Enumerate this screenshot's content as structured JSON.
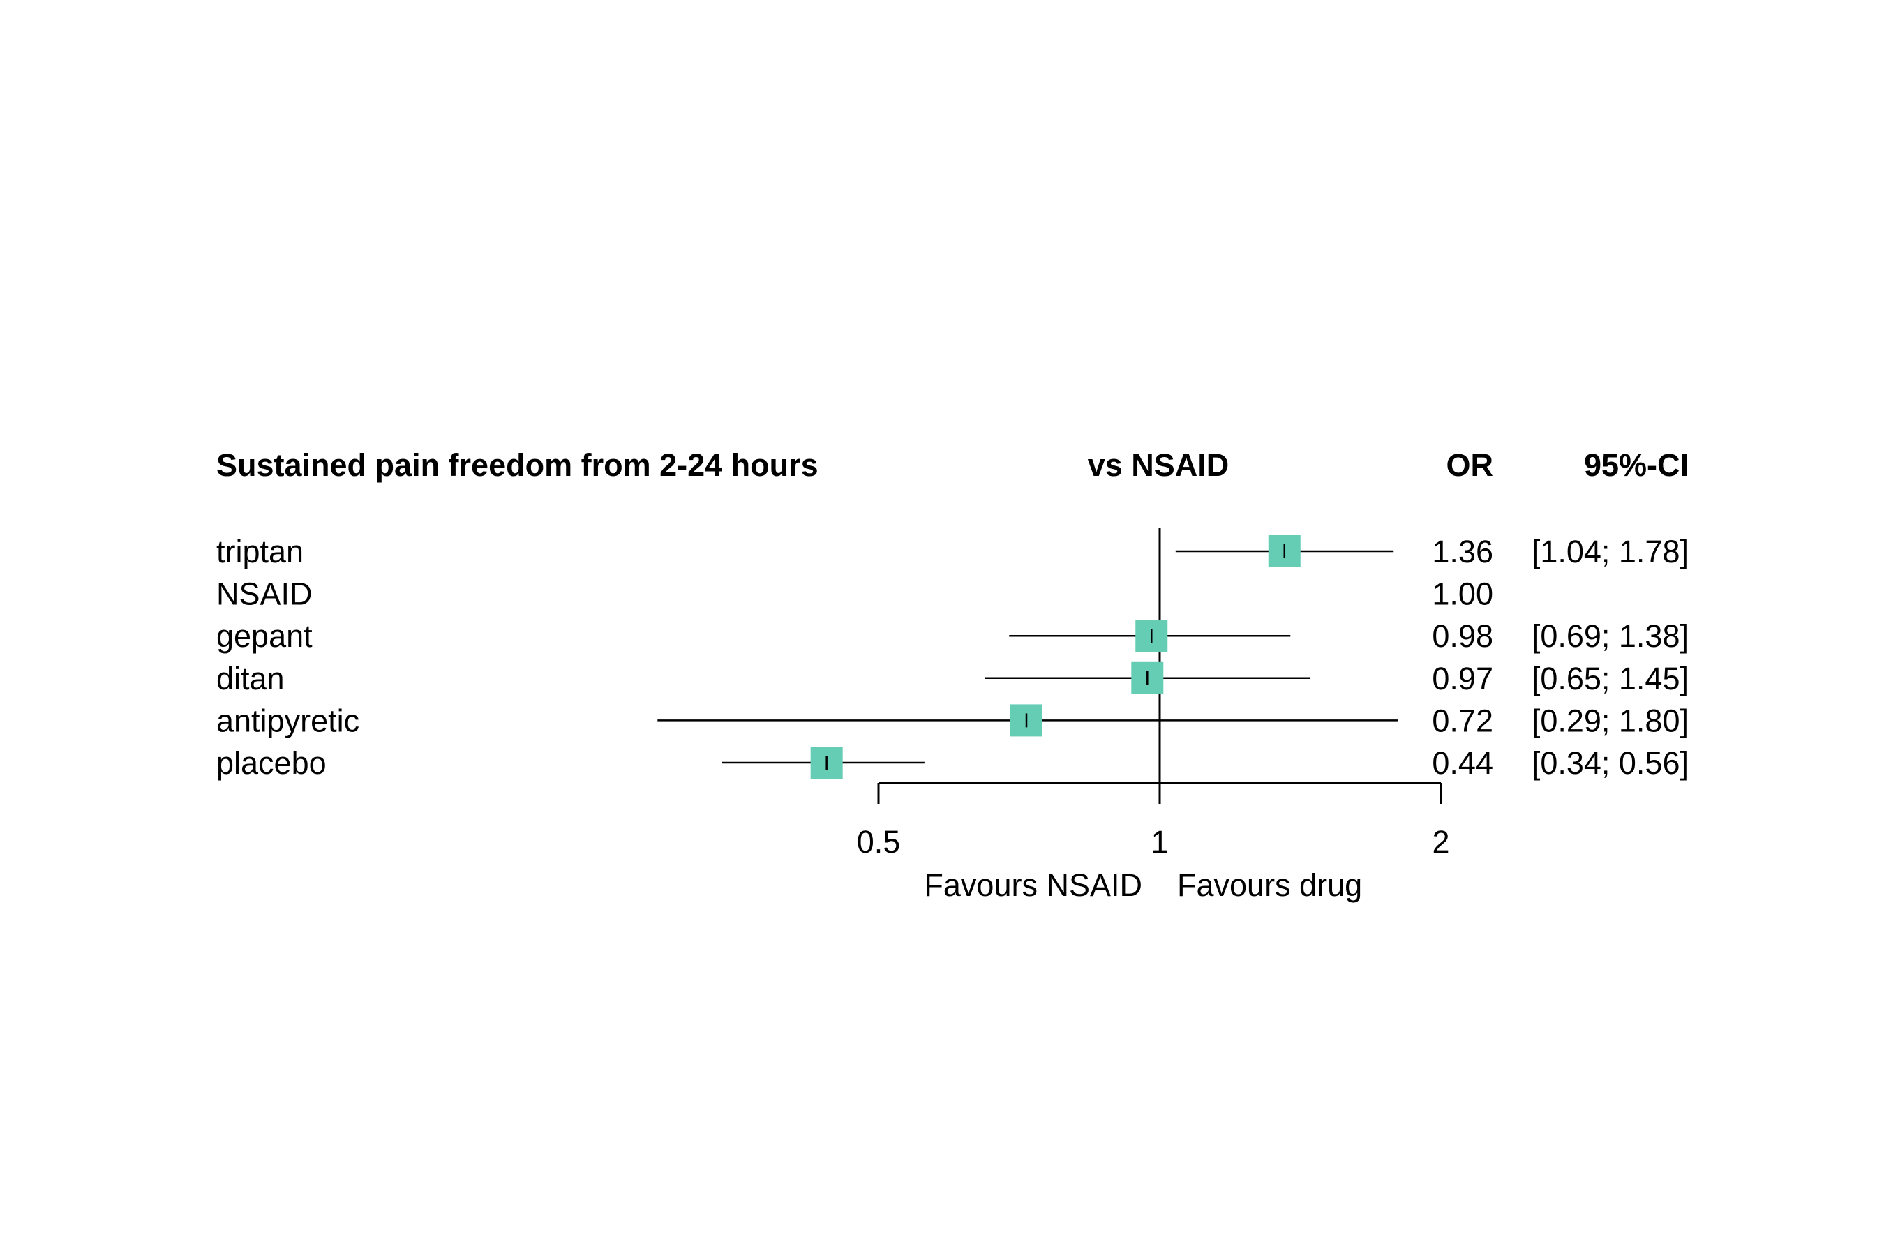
{
  "chart_data": {
    "type": "forest",
    "headers": {
      "study": "Sustained pain freedom from 2-24 hours",
      "comparison": "vs NSAID",
      "effect": "OR",
      "ci": "95%-CI"
    },
    "rows": [
      {
        "label": "triptan",
        "or": 1.36,
        "lower": 1.04,
        "upper": 1.78,
        "or_text": "1.36",
        "ci_text": "[1.04; 1.78]"
      },
      {
        "label": "NSAID",
        "or": 1.0,
        "lower": null,
        "upper": null,
        "or_text": "1.00",
        "ci_text": ""
      },
      {
        "label": "gepant",
        "or": 0.98,
        "lower": 0.69,
        "upper": 1.38,
        "or_text": "0.98",
        "ci_text": "[0.69; 1.38]"
      },
      {
        "label": "ditan",
        "or": 0.97,
        "lower": 0.65,
        "upper": 1.45,
        "or_text": "0.97",
        "ci_text": "[0.65; 1.45]"
      },
      {
        "label": "antipyretic",
        "or": 0.72,
        "lower": 0.29,
        "upper": 1.8,
        "or_text": "0.72",
        "ci_text": "[0.29; 1.80]"
      },
      {
        "label": "placebo",
        "or": 0.44,
        "lower": 0.34,
        "upper": 0.56,
        "or_text": "0.44",
        "ci_text": "[0.34; 0.56]"
      }
    ],
    "x_scale": "log",
    "x_ticks": [
      0.5,
      1,
      2
    ],
    "x_tick_labels": [
      "0.5",
      "1",
      "2"
    ],
    "xlim": [
      0.5,
      2
    ],
    "reference_line": 1,
    "favours_left": "Favours NSAID",
    "favours_right": "Favours drug",
    "colors": {
      "marker": "#66cdb5",
      "line": "#000000"
    }
  }
}
